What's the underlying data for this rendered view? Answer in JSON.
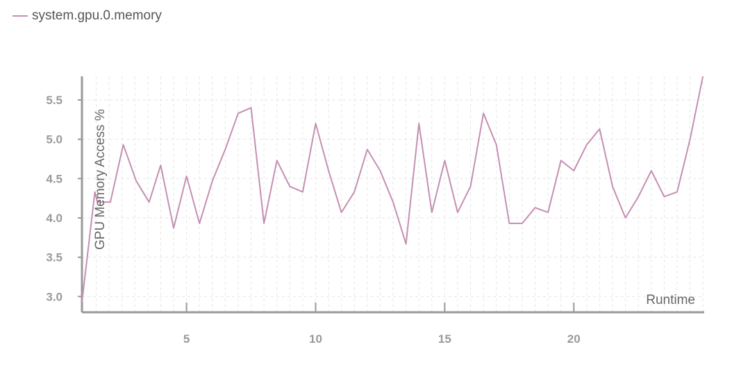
{
  "legend": {
    "label": "system.gpu.0.memory",
    "color": "#c48fb2"
  },
  "chart_data": {
    "type": "line",
    "title": "",
    "xlabel": "Runtime",
    "ylabel": "GPU Memory Access %",
    "xlim": [
      0.95,
      25.05
    ],
    "ylim": [
      2.8,
      5.8
    ],
    "xticks": [
      5,
      10,
      15,
      20
    ],
    "yticks": [
      3.0,
      3.5,
      4.0,
      4.5,
      5.0,
      5.5
    ],
    "ytick_labels": [
      "3.0",
      "3.5",
      "4.0",
      "4.5",
      "5.0",
      "5.5"
    ],
    "grid": true,
    "series": [
      {
        "name": "system.gpu.0.memory",
        "color": "#c48fb2",
        "x": [
          0.95,
          1.45,
          1.55,
          2.05,
          2.55,
          3.05,
          3.55,
          4.0,
          4.5,
          5.0,
          5.5,
          6.0,
          6.5,
          7.0,
          7.5,
          8.0,
          8.5,
          9.0,
          9.5,
          10.0,
          10.5,
          11.0,
          11.5,
          12.0,
          12.5,
          13.0,
          13.5,
          14.0,
          14.5,
          15.0,
          15.5,
          16.0,
          16.5,
          17.0,
          17.5,
          18.0,
          18.5,
          19.0,
          19.5,
          20.0,
          20.5,
          21.0,
          21.5,
          22.0,
          22.5,
          23.0,
          23.5,
          24.0,
          24.5,
          25.0
        ],
        "values": [
          2.93,
          4.33,
          4.2,
          4.2,
          4.93,
          4.47,
          4.2,
          4.67,
          3.87,
          4.53,
          3.93,
          4.47,
          4.87,
          5.33,
          5.4,
          3.93,
          4.73,
          4.4,
          4.33,
          5.2,
          4.6,
          4.07,
          4.33,
          4.87,
          4.6,
          4.2,
          3.67,
          5.2,
          4.07,
          4.73,
          4.07,
          4.4,
          5.33,
          4.93,
          3.93,
          3.93,
          4.13,
          4.07,
          4.73,
          4.6,
          4.93,
          5.13,
          4.4,
          4.0,
          4.27,
          4.6,
          4.27,
          4.33,
          5.0,
          5.8
        ]
      }
    ]
  }
}
